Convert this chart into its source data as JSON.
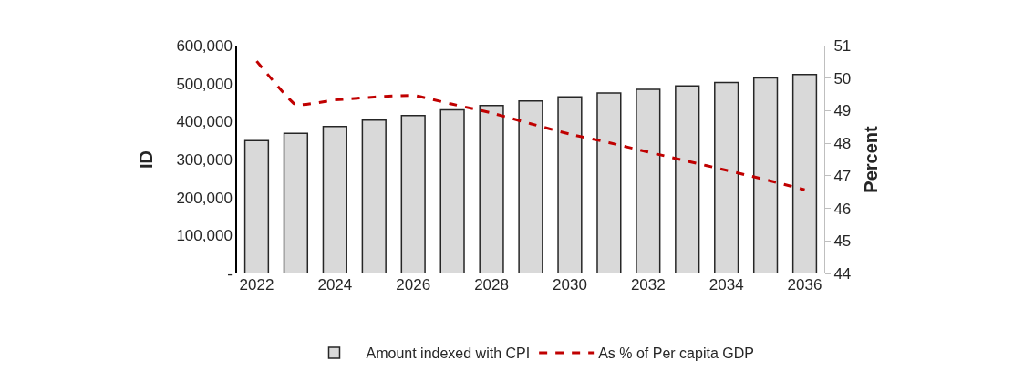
{
  "chart_data": {
    "type": "bar",
    "ylabel": "ID",
    "y2label": "Percent",
    "categories": [
      "2022",
      null,
      "2024",
      null,
      "2026",
      null,
      "2028",
      null,
      "2030",
      null,
      "2032",
      null,
      "2034",
      null,
      "2036"
    ],
    "series": [
      {
        "name": "Amount indexed with CPI",
        "color": "#d9d9d9",
        "values": [
          350000,
          369000,
          387000,
          404000,
          416000,
          431000,
          442000,
          454000,
          465000,
          475000,
          485000,
          494000,
          503000,
          515000,
          524000
        ]
      },
      {
        "name": "As % of Per capita GDP",
        "type": "line",
        "axis": "y2",
        "color": "#c00000",
        "line_style": "dashed",
        "values": [
          50.52,
          49.18,
          49.33,
          49.42,
          49.47,
          49.2,
          48.93,
          48.6,
          48.28,
          48.02,
          47.73,
          47.45,
          47.17,
          46.88,
          46.57
        ]
      }
    ],
    "ylim": [
      0,
      600000
    ],
    "yticks": [
      {
        "value": 0,
        "label": "-"
      },
      {
        "value": 100000,
        "label": "100,000"
      },
      {
        "value": 200000,
        "label": "200,000"
      },
      {
        "value": 300000,
        "label": "300,000"
      },
      {
        "value": 400000,
        "label": "400,000"
      },
      {
        "value": 500000,
        "label": "500,000"
      },
      {
        "value": 600000,
        "label": "600,000"
      }
    ],
    "y2lim": [
      44,
      51
    ],
    "y2ticks": [
      44,
      45,
      46,
      47,
      48,
      49,
      50,
      51
    ],
    "legend": "bottom",
    "grid": false
  }
}
